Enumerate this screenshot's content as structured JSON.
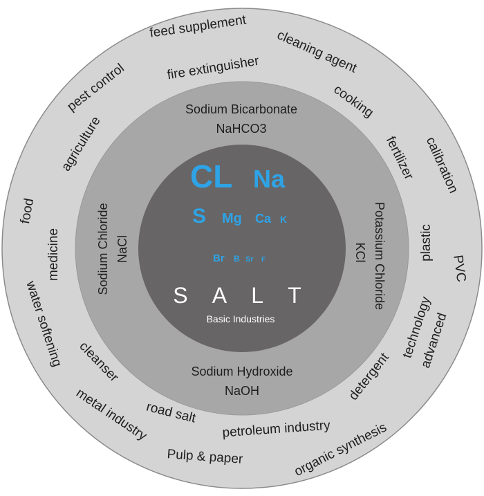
{
  "colors": {
    "outer_ring": "#d5d4d4",
    "middle_ring": "#a8a7a7",
    "inner_circle": "#676565",
    "ring_border": "#8c8b8b",
    "element_text": "#2ea3e6",
    "center_text": "#ffffff",
    "label_text": "#1e1e1e"
  },
  "center": {
    "title": "S A L T",
    "subtitle": "Basic Industries",
    "elements": {
      "cl": "CL",
      "na": "Na",
      "s": "S",
      "mg": "Mg",
      "ca": "Ca",
      "k": "K",
      "br": "Br",
      "b": "B",
      "sr": "Sr",
      "f": "F"
    }
  },
  "middle_ring": {
    "sodium_bicarbonate": {
      "name": "Sodium Bicarbonate",
      "formula": "NaHCO3"
    },
    "sodium_hydroxide": {
      "name": "Sodium Hydroxide",
      "formula": "NaOH"
    },
    "sodium_chloride": {
      "name": "Sodium Chloride",
      "formula": "NaCl"
    },
    "potassium_chloride": {
      "name": "Potassium Chloride",
      "formula": "KCl"
    }
  },
  "outer_ring": {
    "feed_supplement": "feed supplement",
    "cleaning_agent": "cleaning agent",
    "fire_extinguisher": "fire extinguisher",
    "pest_control": "pest control",
    "cooking": "cooking",
    "agriculture": "agriculture",
    "fertilizer": "fertilizer",
    "calibration": "calibration",
    "food": "food",
    "medicine": "medicine",
    "plastic": "plastic",
    "pvc": "PVC",
    "water_softening": "water softening",
    "advanced": "advanced",
    "technology": "technology",
    "cleanser": "cleanser",
    "detergent": "detergent",
    "metal_industry": "metal industry",
    "road_salt": "road salt",
    "petroleum_industry": "petroleum industry",
    "organic_synthesis": "organic synthesis",
    "pulp_paper": "Pulp & paper"
  }
}
